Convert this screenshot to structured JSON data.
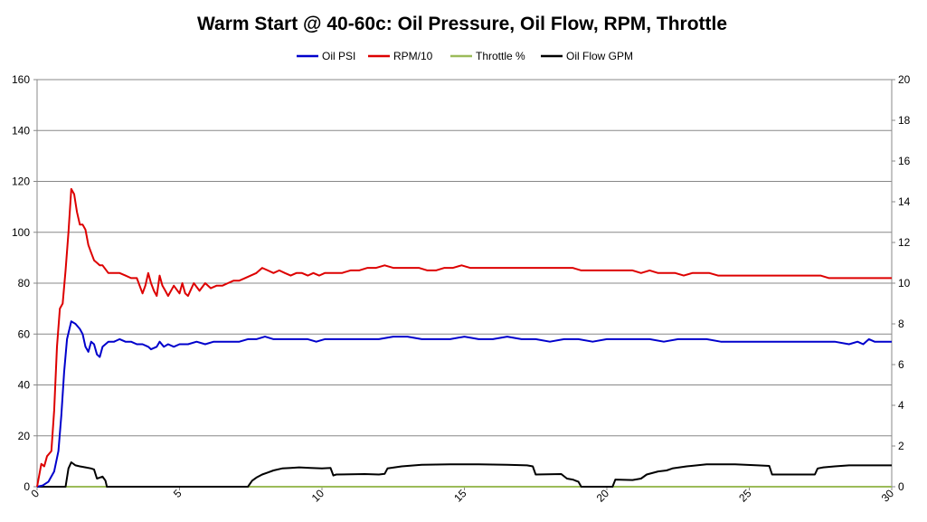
{
  "chart_data": {
    "type": "line",
    "title": "Warm Start @ 40-60c: Oil Pressure, Oil Flow, RPM, Throttle",
    "xlabel": "",
    "ylabel": "",
    "y2label": "",
    "xlim": [
      0,
      30
    ],
    "ylim": [
      0,
      160
    ],
    "y2lim": [
      0,
      20
    ],
    "x_ticks": [
      "0",
      "5",
      "10",
      "15",
      "20",
      "25",
      "30"
    ],
    "y_ticks": [
      "0",
      "20",
      "40",
      "60",
      "80",
      "100",
      "120",
      "140",
      "160"
    ],
    "y2_ticks": [
      "0",
      "2",
      "4",
      "6",
      "8",
      "10",
      "12",
      "14",
      "16",
      "18",
      "20"
    ],
    "grid": "horizontal",
    "legend_position": "top",
    "series": [
      {
        "name": "Oil PSI",
        "axis": "left",
        "color": "#0000cc",
        "points": [
          [
            0,
            0
          ],
          [
            0.2,
            0.5
          ],
          [
            0.4,
            2
          ],
          [
            0.6,
            6
          ],
          [
            0.75,
            14
          ],
          [
            0.85,
            28
          ],
          [
            0.95,
            45
          ],
          [
            1.05,
            58
          ],
          [
            1.2,
            65
          ],
          [
            1.35,
            64
          ],
          [
            1.5,
            62
          ],
          [
            1.6,
            60
          ],
          [
            1.7,
            55
          ],
          [
            1.8,
            53
          ],
          [
            1.9,
            57
          ],
          [
            2.0,
            56
          ],
          [
            2.1,
            52
          ],
          [
            2.2,
            51
          ],
          [
            2.3,
            55
          ],
          [
            2.5,
            57
          ],
          [
            2.7,
            57
          ],
          [
            2.9,
            58
          ],
          [
            3.1,
            57
          ],
          [
            3.3,
            57
          ],
          [
            3.5,
            56
          ],
          [
            3.7,
            56
          ],
          [
            3.9,
            55
          ],
          [
            4.0,
            54
          ],
          [
            4.2,
            55
          ],
          [
            4.3,
            57
          ],
          [
            4.45,
            55
          ],
          [
            4.6,
            56
          ],
          [
            4.8,
            55
          ],
          [
            5.0,
            56
          ],
          [
            5.3,
            56
          ],
          [
            5.6,
            57
          ],
          [
            5.9,
            56
          ],
          [
            6.2,
            57
          ],
          [
            6.5,
            57
          ],
          [
            6.8,
            57
          ],
          [
            7.1,
            57
          ],
          [
            7.4,
            58
          ],
          [
            7.7,
            58
          ],
          [
            8.0,
            59
          ],
          [
            8.3,
            58
          ],
          [
            8.6,
            58
          ],
          [
            8.9,
            58
          ],
          [
            9.2,
            58
          ],
          [
            9.5,
            58
          ],
          [
            9.8,
            57
          ],
          [
            10.1,
            58
          ],
          [
            10.4,
            58
          ],
          [
            10.7,
            58
          ],
          [
            11.0,
            58
          ],
          [
            11.5,
            58
          ],
          [
            12.0,
            58
          ],
          [
            12.5,
            59
          ],
          [
            13.0,
            59
          ],
          [
            13.5,
            58
          ],
          [
            14.0,
            58
          ],
          [
            14.5,
            58
          ],
          [
            15.0,
            59
          ],
          [
            15.5,
            58
          ],
          [
            16.0,
            58
          ],
          [
            16.5,
            59
          ],
          [
            17.0,
            58
          ],
          [
            17.5,
            58
          ],
          [
            18.0,
            57
          ],
          [
            18.5,
            58
          ],
          [
            19.0,
            58
          ],
          [
            19.5,
            57
          ],
          [
            20.0,
            58
          ],
          [
            20.5,
            58
          ],
          [
            21.0,
            58
          ],
          [
            21.5,
            58
          ],
          [
            22.0,
            57
          ],
          [
            22.5,
            58
          ],
          [
            23.0,
            58
          ],
          [
            23.5,
            58
          ],
          [
            24.0,
            57
          ],
          [
            24.5,
            57
          ],
          [
            25.0,
            57
          ],
          [
            25.5,
            57
          ],
          [
            26.0,
            57
          ],
          [
            26.5,
            57
          ],
          [
            27.0,
            57
          ],
          [
            27.5,
            57
          ],
          [
            28.0,
            57
          ],
          [
            28.5,
            56
          ],
          [
            28.8,
            57
          ],
          [
            29.0,
            56
          ],
          [
            29.2,
            58
          ],
          [
            29.4,
            57
          ],
          [
            29.7,
            57
          ],
          [
            30.0,
            57
          ]
        ]
      },
      {
        "name": "RPM/10",
        "axis": "left",
        "color": "#dd0000",
        "points": [
          [
            0,
            0
          ],
          [
            0.15,
            9
          ],
          [
            0.25,
            8
          ],
          [
            0.35,
            12
          ],
          [
            0.5,
            14
          ],
          [
            0.6,
            30
          ],
          [
            0.7,
            55
          ],
          [
            0.8,
            70
          ],
          [
            0.9,
            72
          ],
          [
            1.0,
            85
          ],
          [
            1.1,
            100
          ],
          [
            1.2,
            117
          ],
          [
            1.3,
            115
          ],
          [
            1.4,
            108
          ],
          [
            1.5,
            103
          ],
          [
            1.6,
            103
          ],
          [
            1.7,
            101
          ],
          [
            1.8,
            95
          ],
          [
            1.9,
            92
          ],
          [
            2.0,
            89
          ],
          [
            2.1,
            88
          ],
          [
            2.2,
            87
          ],
          [
            2.3,
            87
          ],
          [
            2.5,
            84
          ],
          [
            2.7,
            84
          ],
          [
            2.9,
            84
          ],
          [
            3.1,
            83
          ],
          [
            3.3,
            82
          ],
          [
            3.5,
            82
          ],
          [
            3.6,
            79
          ],
          [
            3.7,
            76
          ],
          [
            3.8,
            79
          ],
          [
            3.9,
            84
          ],
          [
            4.0,
            80
          ],
          [
            4.1,
            77
          ],
          [
            4.2,
            75
          ],
          [
            4.3,
            83
          ],
          [
            4.4,
            79
          ],
          [
            4.5,
            77
          ],
          [
            4.6,
            75
          ],
          [
            4.8,
            79
          ],
          [
            5.0,
            76
          ],
          [
            5.1,
            80
          ],
          [
            5.2,
            76
          ],
          [
            5.3,
            75
          ],
          [
            5.5,
            80
          ],
          [
            5.7,
            77
          ],
          [
            5.9,
            80
          ],
          [
            6.1,
            78
          ],
          [
            6.3,
            79
          ],
          [
            6.5,
            79
          ],
          [
            6.7,
            80
          ],
          [
            6.9,
            81
          ],
          [
            7.1,
            81
          ],
          [
            7.3,
            82
          ],
          [
            7.5,
            83
          ],
          [
            7.7,
            84
          ],
          [
            7.9,
            86
          ],
          [
            8.1,
            85
          ],
          [
            8.3,
            84
          ],
          [
            8.5,
            85
          ],
          [
            8.7,
            84
          ],
          [
            8.9,
            83
          ],
          [
            9.1,
            84
          ],
          [
            9.3,
            84
          ],
          [
            9.5,
            83
          ],
          [
            9.7,
            84
          ],
          [
            9.9,
            83
          ],
          [
            10.1,
            84
          ],
          [
            10.4,
            84
          ],
          [
            10.7,
            84
          ],
          [
            11.0,
            85
          ],
          [
            11.3,
            85
          ],
          [
            11.6,
            86
          ],
          [
            11.9,
            86
          ],
          [
            12.2,
            87
          ],
          [
            12.5,
            86
          ],
          [
            12.8,
            86
          ],
          [
            13.1,
            86
          ],
          [
            13.4,
            86
          ],
          [
            13.7,
            85
          ],
          [
            14.0,
            85
          ],
          [
            14.3,
            86
          ],
          [
            14.6,
            86
          ],
          [
            14.9,
            87
          ],
          [
            15.2,
            86
          ],
          [
            15.5,
            86
          ],
          [
            15.8,
            86
          ],
          [
            16.1,
            86
          ],
          [
            16.4,
            86
          ],
          [
            16.7,
            86
          ],
          [
            17.0,
            86
          ],
          [
            17.3,
            86
          ],
          [
            17.6,
            86
          ],
          [
            17.9,
            86
          ],
          [
            18.2,
            86
          ],
          [
            18.5,
            86
          ],
          [
            18.8,
            86
          ],
          [
            19.1,
            85
          ],
          [
            19.4,
            85
          ],
          [
            19.7,
            85
          ],
          [
            20.0,
            85
          ],
          [
            20.3,
            85
          ],
          [
            20.6,
            85
          ],
          [
            20.9,
            85
          ],
          [
            21.2,
            84
          ],
          [
            21.5,
            85
          ],
          [
            21.8,
            84
          ],
          [
            22.1,
            84
          ],
          [
            22.4,
            84
          ],
          [
            22.7,
            83
          ],
          [
            23.0,
            84
          ],
          [
            23.3,
            84
          ],
          [
            23.6,
            84
          ],
          [
            23.9,
            83
          ],
          [
            24.2,
            83
          ],
          [
            24.5,
            83
          ],
          [
            24.8,
            83
          ],
          [
            25.1,
            83
          ],
          [
            25.4,
            83
          ],
          [
            25.7,
            83
          ],
          [
            26.0,
            83
          ],
          [
            26.3,
            83
          ],
          [
            26.6,
            83
          ],
          [
            26.9,
            83
          ],
          [
            27.2,
            83
          ],
          [
            27.5,
            83
          ],
          [
            27.8,
            82
          ],
          [
            28.1,
            82
          ],
          [
            28.4,
            82
          ],
          [
            28.7,
            82
          ],
          [
            29.0,
            82
          ],
          [
            29.3,
            82
          ],
          [
            29.6,
            82
          ],
          [
            30.0,
            82
          ]
        ]
      },
      {
        "name": "Throttle %",
        "axis": "left",
        "color": "#9bbb59",
        "points": [
          [
            0,
            0
          ],
          [
            30,
            0
          ]
        ]
      },
      {
        "name": "Oil Flow GPM",
        "axis": "right",
        "color": "#000000",
        "points": [
          [
            0,
            0
          ],
          [
            1.0,
            0
          ],
          [
            1.1,
            0.9
          ],
          [
            1.2,
            1.2
          ],
          [
            1.35,
            1.05
          ],
          [
            1.5,
            1.0
          ],
          [
            1.7,
            0.95
          ],
          [
            1.9,
            0.9
          ],
          [
            2.0,
            0.85
          ],
          [
            2.1,
            0.4
          ],
          [
            2.2,
            0.45
          ],
          [
            2.3,
            0.5
          ],
          [
            2.4,
            0.3
          ],
          [
            2.45,
            0
          ],
          [
            7.4,
            0
          ],
          [
            7.55,
            0.3
          ],
          [
            7.7,
            0.45
          ],
          [
            7.9,
            0.6
          ],
          [
            8.1,
            0.7
          ],
          [
            8.3,
            0.8
          ],
          [
            8.6,
            0.9
          ],
          [
            8.9,
            0.92
          ],
          [
            9.2,
            0.95
          ],
          [
            9.6,
            0.92
          ],
          [
            10.0,
            0.9
          ],
          [
            10.3,
            0.92
          ],
          [
            10.4,
            0.55
          ],
          [
            10.5,
            0.6
          ],
          [
            11.5,
            0.62
          ],
          [
            12.0,
            0.6
          ],
          [
            12.2,
            0.63
          ],
          [
            12.3,
            0.9
          ],
          [
            12.8,
            1.0
          ],
          [
            13.5,
            1.08
          ],
          [
            14.5,
            1.1
          ],
          [
            15.5,
            1.1
          ],
          [
            16.5,
            1.08
          ],
          [
            17.2,
            1.05
          ],
          [
            17.4,
            1.0
          ],
          [
            17.5,
            0.6
          ],
          [
            18.4,
            0.62
          ],
          [
            18.6,
            0.4
          ],
          [
            18.8,
            0.35
          ],
          [
            19.0,
            0.25
          ],
          [
            19.1,
            0
          ],
          [
            20.2,
            0
          ],
          [
            20.3,
            0.35
          ],
          [
            20.9,
            0.33
          ],
          [
            21.2,
            0.4
          ],
          [
            21.4,
            0.6
          ],
          [
            21.8,
            0.75
          ],
          [
            22.1,
            0.8
          ],
          [
            22.3,
            0.9
          ],
          [
            22.8,
            1.0
          ],
          [
            23.5,
            1.1
          ],
          [
            24.5,
            1.1
          ],
          [
            25.3,
            1.05
          ],
          [
            25.7,
            1.02
          ],
          [
            25.8,
            0.6
          ],
          [
            26.5,
            0.6
          ],
          [
            27.3,
            0.6
          ],
          [
            27.4,
            0.9
          ],
          [
            27.6,
            0.95
          ],
          [
            28.0,
            1.0
          ],
          [
            28.5,
            1.05
          ],
          [
            29.0,
            1.05
          ],
          [
            30.0,
            1.05
          ]
        ]
      }
    ]
  }
}
